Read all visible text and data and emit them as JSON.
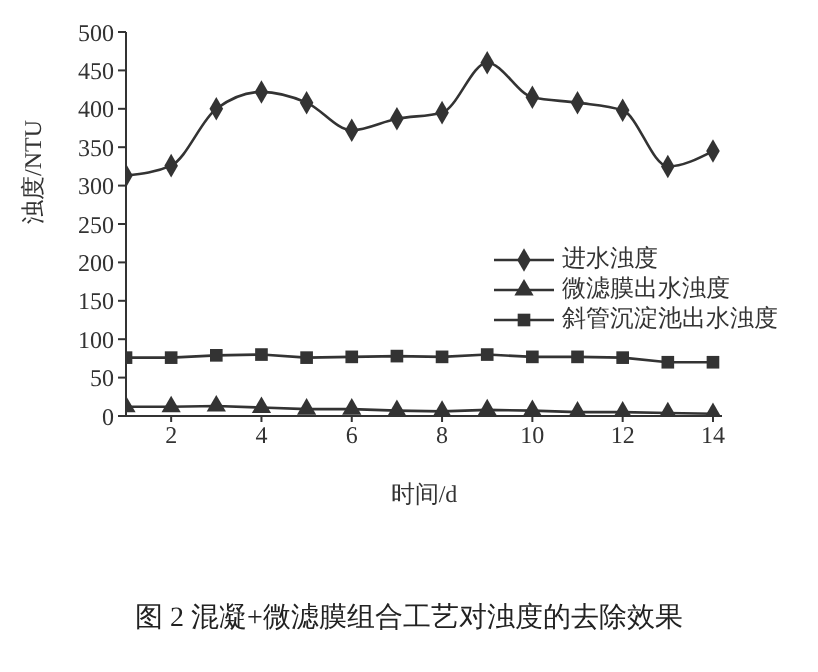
{
  "chart_data": {
    "type": "line",
    "title": "图 2 混凝+微滤膜组合工艺对浊度的去除效果",
    "xlabel": "时间/d",
    "ylabel": "浊度/NTU",
    "x": [
      1,
      2,
      3,
      4,
      5,
      6,
      7,
      8,
      9,
      10,
      11,
      12,
      13,
      14
    ],
    "series": [
      {
        "name": "进水浊度",
        "color": "#333333",
        "marker": "diamond",
        "values": [
          313,
          326,
          400,
          422,
          408,
          372,
          387,
          395,
          460,
          415,
          408,
          398,
          325,
          345
        ]
      },
      {
        "name": "微滤膜出水浊度",
        "color": "#333333",
        "marker": "triangle",
        "values": [
          12,
          12,
          13,
          11,
          9,
          9,
          7,
          6,
          8,
          7,
          5,
          5,
          4,
          3
        ]
      },
      {
        "name": "斜管沉淀池出水浊度",
        "color": "#333333",
        "marker": "square",
        "values": [
          76,
          76,
          79,
          80,
          76,
          77,
          78,
          77,
          80,
          77,
          77,
          76,
          70,
          70
        ]
      }
    ],
    "xlim": [
      1,
      14.2
    ],
    "xticks": [
      2,
      4,
      6,
      8,
      10,
      12,
      14
    ],
    "ylim": [
      0,
      500
    ],
    "yticks": [
      0,
      50,
      100,
      150,
      200,
      250,
      300,
      350,
      400,
      450,
      500
    ],
    "grid": false,
    "legend": "right",
    "line_style": "solid"
  }
}
